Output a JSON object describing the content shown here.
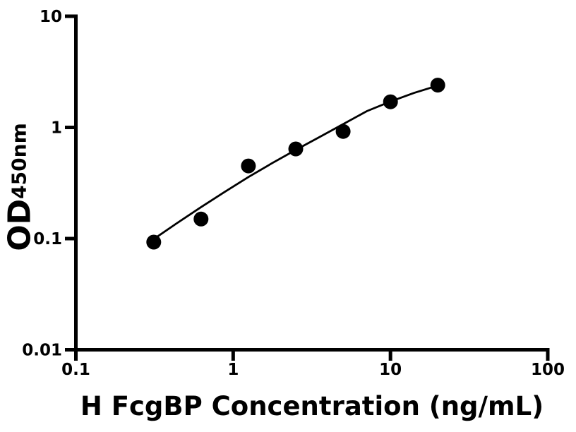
{
  "chart_data": {
    "type": "scatter",
    "title": "",
    "xlabel": "H FcgBP Concentration (ng/mL)",
    "ylabel_main": "OD",
    "ylabel_sub": "450nm",
    "x_scale": "log",
    "y_scale": "log",
    "xlim": [
      0.1,
      100
    ],
    "ylim": [
      0.01,
      10
    ],
    "x_ticks": {
      "values": [
        0.1,
        1,
        10,
        100
      ],
      "labels": [
        "0.1",
        "1",
        "10",
        "100"
      ]
    },
    "y_ticks": {
      "values": [
        10,
        1,
        0.1,
        0.01
      ],
      "labels": [
        "10",
        "1",
        "0.1",
        "0.01"
      ]
    },
    "grid": false,
    "legend": "none",
    "series": [
      {
        "name": "standard-points",
        "type": "scatter",
        "x": [
          0.3125,
          0.625,
          1.25,
          2.5,
          5,
          10,
          20
        ],
        "y": [
          0.093,
          0.15,
          0.45,
          0.64,
          0.92,
          1.7,
          2.4
        ]
      },
      {
        "name": "fit-curve",
        "type": "line",
        "x": [
          0.3125,
          0.44,
          0.625,
          0.88,
          1.25,
          1.77,
          2.5,
          3.54,
          5.0,
          7.07,
          10.0,
          14.1,
          20.0
        ],
        "y": [
          0.099,
          0.138,
          0.192,
          0.262,
          0.358,
          0.477,
          0.627,
          0.82,
          1.07,
          1.4,
          1.71,
          2.04,
          2.38
        ]
      }
    ],
    "colors": {
      "marker": "#000000",
      "line": "#000000",
      "axis": "#000000",
      "text": "#000000",
      "background": "#ffffff"
    }
  }
}
